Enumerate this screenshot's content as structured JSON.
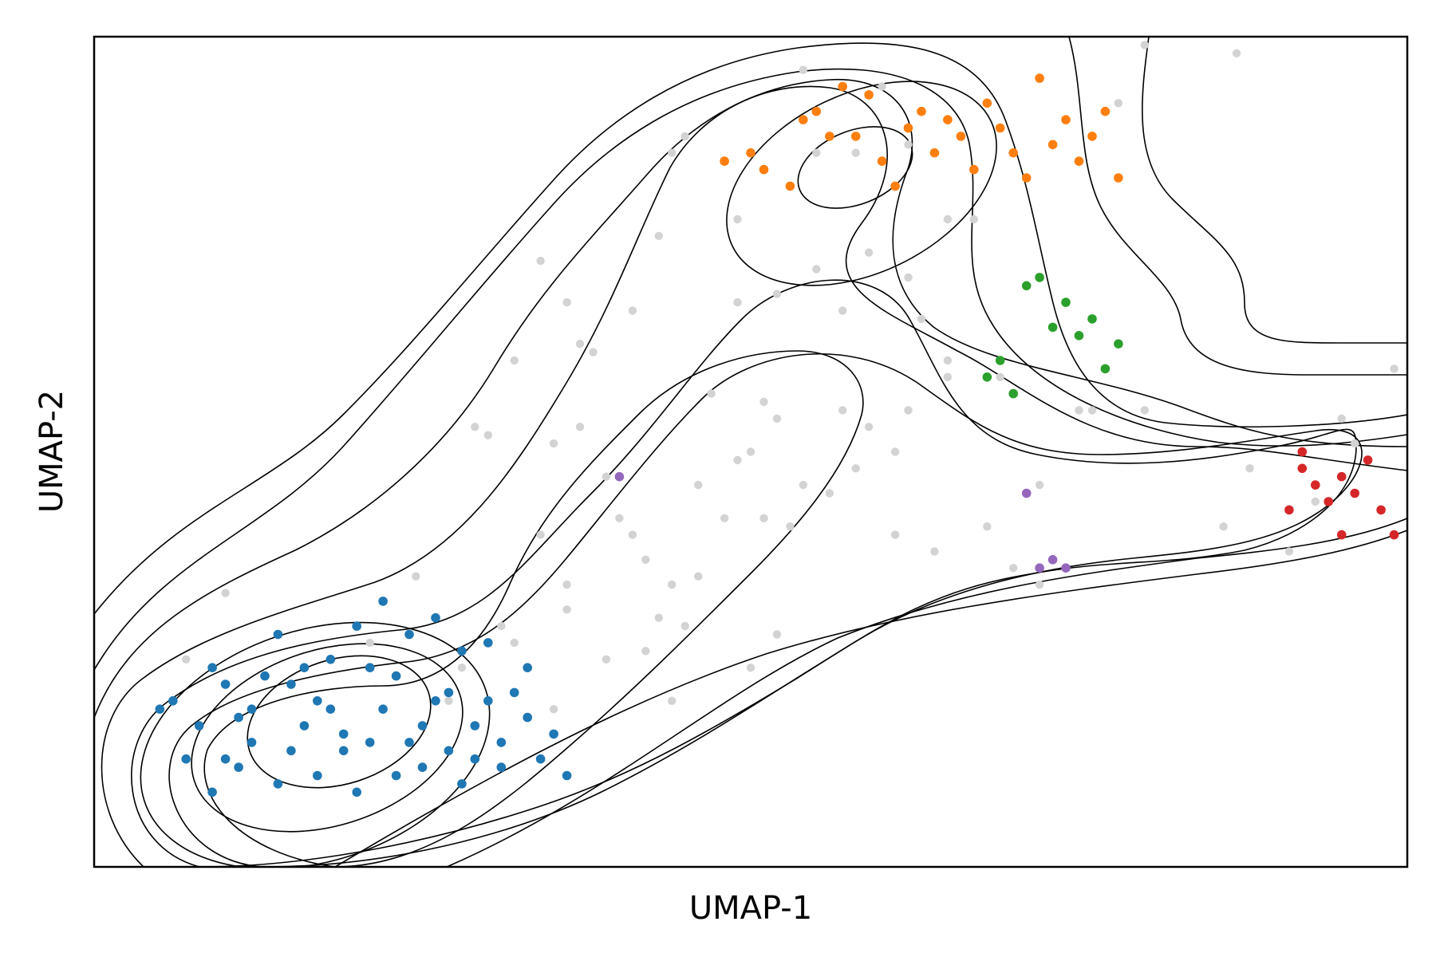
{
  "chart_data": {
    "type": "scatter",
    "title": "",
    "xlabel": "UMAP-1",
    "ylabel": "UMAP-2",
    "xlim": [
      0,
      1
    ],
    "ylim": [
      0,
      1
    ],
    "grid": false,
    "show_ticks": false,
    "legend": "none",
    "colors": {
      "background": "#d3d3d3",
      "blue": "#1f77b4",
      "orange": "#ff7f0e",
      "green": "#2ca02c",
      "red": "#d62728",
      "purple": "#9467bd",
      "contour": "#000000"
    },
    "series": [
      {
        "color_key": "background",
        "points": [
          [
            0.07,
            0.25
          ],
          [
            0.1,
            0.33
          ],
          [
            0.21,
            0.27
          ],
          [
            0.245,
            0.35
          ],
          [
            0.27,
            0.2
          ],
          [
            0.28,
            0.24
          ],
          [
            0.31,
            0.29
          ],
          [
            0.32,
            0.27
          ],
          [
            0.35,
            0.19
          ],
          [
            0.36,
            0.31
          ],
          [
            0.37,
            0.53
          ],
          [
            0.29,
            0.53
          ],
          [
            0.3,
            0.52
          ],
          [
            0.32,
            0.61
          ],
          [
            0.35,
            0.51
          ],
          [
            0.37,
            0.63
          ],
          [
            0.38,
            0.62
          ],
          [
            0.36,
            0.68
          ],
          [
            0.34,
            0.73
          ],
          [
            0.39,
            0.47
          ],
          [
            0.4,
            0.42
          ],
          [
            0.41,
            0.4
          ],
          [
            0.42,
            0.37
          ],
          [
            0.42,
            0.26
          ],
          [
            0.44,
            0.2
          ],
          [
            0.45,
            0.29
          ],
          [
            0.46,
            0.35
          ],
          [
            0.46,
            0.46
          ],
          [
            0.48,
            0.42
          ],
          [
            0.49,
            0.49
          ],
          [
            0.5,
            0.5
          ],
          [
            0.51,
            0.42
          ],
          [
            0.52,
            0.54
          ],
          [
            0.53,
            0.41
          ],
          [
            0.56,
            0.45
          ],
          [
            0.57,
            0.55
          ],
          [
            0.59,
            0.53
          ],
          [
            0.61,
            0.5
          ],
          [
            0.62,
            0.55
          ],
          [
            0.68,
            0.41
          ],
          [
            0.7,
            0.36
          ],
          [
            0.72,
            0.34
          ],
          [
            0.75,
            0.55
          ],
          [
            0.8,
            0.55
          ],
          [
            0.88,
            0.48
          ],
          [
            0.93,
            0.44
          ],
          [
            0.6,
            0.94
          ],
          [
            0.54,
            0.96
          ],
          [
            0.45,
            0.88
          ],
          [
            0.44,
            0.86
          ],
          [
            0.43,
            0.76
          ],
          [
            0.49,
            0.78
          ],
          [
            0.52,
            0.69
          ],
          [
            0.55,
            0.72
          ],
          [
            0.59,
            0.74
          ],
          [
            0.63,
            0.66
          ],
          [
            0.65,
            0.78
          ],
          [
            0.62,
            0.87
          ],
          [
            0.58,
            0.86
          ],
          [
            0.67,
            0.78
          ],
          [
            0.65,
            0.61
          ],
          [
            0.76,
            0.55
          ],
          [
            0.72,
            0.46
          ],
          [
            0.65,
            0.59
          ],
          [
            0.44,
            0.34
          ],
          [
            0.5,
            0.24
          ],
          [
            0.47,
            0.57
          ],
          [
            0.41,
            0.67
          ],
          [
            0.34,
            0.4
          ],
          [
            0.36,
            0.34
          ],
          [
            0.39,
            0.25
          ],
          [
            0.43,
            0.3
          ],
          [
            0.49,
            0.68
          ],
          [
            0.51,
            0.56
          ],
          [
            0.52,
            0.28
          ],
          [
            0.54,
            0.46
          ],
          [
            0.58,
            0.48
          ],
          [
            0.61,
            0.4
          ],
          [
            0.64,
            0.38
          ],
          [
            0.69,
            0.59
          ],
          [
            0.86,
            0.41
          ],
          [
            0.91,
            0.38
          ],
          [
            0.95,
            0.54
          ],
          [
            0.96,
            0.51
          ],
          [
            0.99,
            0.6
          ],
          [
            0.8,
            0.99
          ],
          [
            0.87,
            0.98
          ],
          [
            0.78,
            0.92
          ],
          [
            0.55,
            0.86
          ],
          [
            0.57,
            0.67
          ],
          [
            0.62,
            0.71
          ]
        ]
      },
      {
        "color_key": "blue",
        "points": [
          [
            0.05,
            0.19
          ],
          [
            0.06,
            0.2
          ],
          [
            0.07,
            0.13
          ],
          [
            0.08,
            0.17
          ],
          [
            0.09,
            0.09
          ],
          [
            0.1,
            0.13
          ],
          [
            0.11,
            0.12
          ],
          [
            0.12,
            0.15
          ],
          [
            0.13,
            0.23
          ],
          [
            0.14,
            0.1
          ],
          [
            0.15,
            0.22
          ],
          [
            0.16,
            0.17
          ],
          [
            0.17,
            0.11
          ],
          [
            0.18,
            0.19
          ],
          [
            0.19,
            0.14
          ],
          [
            0.2,
            0.09
          ],
          [
            0.21,
            0.24
          ],
          [
            0.22,
            0.19
          ],
          [
            0.23,
            0.23
          ],
          [
            0.24,
            0.15
          ],
          [
            0.25,
            0.12
          ],
          [
            0.26,
            0.2
          ],
          [
            0.27,
            0.14
          ],
          [
            0.28,
            0.1
          ],
          [
            0.29,
            0.17
          ],
          [
            0.3,
            0.2
          ],
          [
            0.31,
            0.12
          ],
          [
            0.32,
            0.21
          ],
          [
            0.33,
            0.18
          ],
          [
            0.34,
            0.13
          ],
          [
            0.35,
            0.16
          ],
          [
            0.36,
            0.11
          ],
          [
            0.12,
            0.19
          ],
          [
            0.14,
            0.28
          ],
          [
            0.18,
            0.25
          ],
          [
            0.2,
            0.29
          ],
          [
            0.22,
            0.32
          ],
          [
            0.26,
            0.3
          ],
          [
            0.28,
            0.26
          ],
          [
            0.3,
            0.27
          ],
          [
            0.16,
            0.24
          ],
          [
            0.24,
            0.28
          ],
          [
            0.09,
            0.24
          ],
          [
            0.1,
            0.22
          ],
          [
            0.11,
            0.18
          ],
          [
            0.15,
            0.14
          ],
          [
            0.17,
            0.2
          ],
          [
            0.19,
            0.16
          ],
          [
            0.21,
            0.15
          ],
          [
            0.23,
            0.11
          ],
          [
            0.25,
            0.17
          ],
          [
            0.27,
            0.21
          ],
          [
            0.29,
            0.13
          ],
          [
            0.31,
            0.15
          ],
          [
            0.33,
            0.24
          ]
        ]
      },
      {
        "color_key": "orange",
        "points": [
          [
            0.48,
            0.85
          ],
          [
            0.5,
            0.86
          ],
          [
            0.51,
            0.84
          ],
          [
            0.53,
            0.82
          ],
          [
            0.54,
            0.9
          ],
          [
            0.55,
            0.91
          ],
          [
            0.56,
            0.88
          ],
          [
            0.57,
            0.94
          ],
          [
            0.58,
            0.88
          ],
          [
            0.59,
            0.93
          ],
          [
            0.6,
            0.85
          ],
          [
            0.61,
            0.82
          ],
          [
            0.62,
            0.89
          ],
          [
            0.63,
            0.91
          ],
          [
            0.64,
            0.86
          ],
          [
            0.65,
            0.9
          ],
          [
            0.66,
            0.88
          ],
          [
            0.67,
            0.84
          ],
          [
            0.68,
            0.92
          ],
          [
            0.69,
            0.89
          ],
          [
            0.7,
            0.86
          ],
          [
            0.71,
            0.83
          ],
          [
            0.72,
            0.95
          ],
          [
            0.73,
            0.87
          ],
          [
            0.74,
            0.9
          ],
          [
            0.75,
            0.85
          ],
          [
            0.76,
            0.88
          ],
          [
            0.77,
            0.91
          ],
          [
            0.78,
            0.83
          ]
        ]
      },
      {
        "color_key": "green",
        "points": [
          [
            0.68,
            0.59
          ],
          [
            0.69,
            0.61
          ],
          [
            0.7,
            0.57
          ],
          [
            0.71,
            0.7
          ],
          [
            0.72,
            0.71
          ],
          [
            0.73,
            0.65
          ],
          [
            0.74,
            0.68
          ],
          [
            0.75,
            0.64
          ],
          [
            0.76,
            0.66
          ],
          [
            0.77,
            0.6
          ],
          [
            0.78,
            0.63
          ]
        ]
      },
      {
        "color_key": "red",
        "points": [
          [
            0.91,
            0.43
          ],
          [
            0.92,
            0.48
          ],
          [
            0.93,
            0.46
          ],
          [
            0.94,
            0.44
          ],
          [
            0.95,
            0.47
          ],
          [
            0.96,
            0.45
          ],
          [
            0.97,
            0.49
          ],
          [
            0.98,
            0.43
          ],
          [
            0.99,
            0.4
          ],
          [
            0.92,
            0.5
          ],
          [
            0.95,
            0.4
          ]
        ]
      },
      {
        "color_key": "purple",
        "points": [
          [
            0.4,
            0.47
          ],
          [
            0.71,
            0.45
          ],
          [
            0.72,
            0.36
          ],
          [
            0.73,
            0.37
          ],
          [
            0.74,
            0.36
          ]
        ]
      }
    ]
  }
}
